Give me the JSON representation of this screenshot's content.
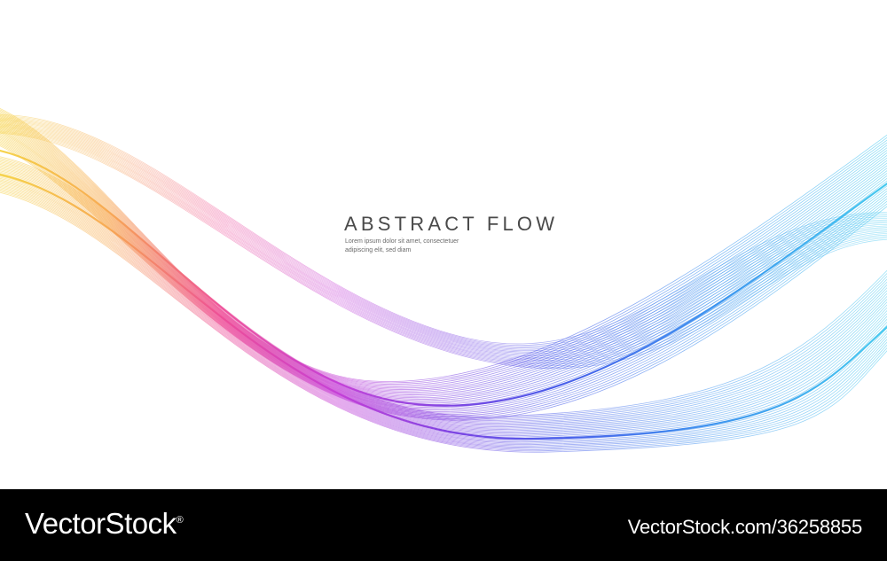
{
  "artwork": {
    "title": "ABSTRACT  FLOW",
    "caption_line_1": "Lorem ipsum dolor sit amet, consectetuer",
    "caption_line_2": "adipiscing elit, sed diam",
    "wave_colors": [
      "#f5cf3a",
      "#f7a64a",
      "#ee4b96",
      "#c43bd6",
      "#7a35e0",
      "#3d4fe8",
      "#2f8bee",
      "#39c6ee"
    ]
  },
  "watermark": {
    "brand": "VectorStock",
    "brand_mark": "®",
    "stock_id": "VectorStock.com/36258855"
  }
}
